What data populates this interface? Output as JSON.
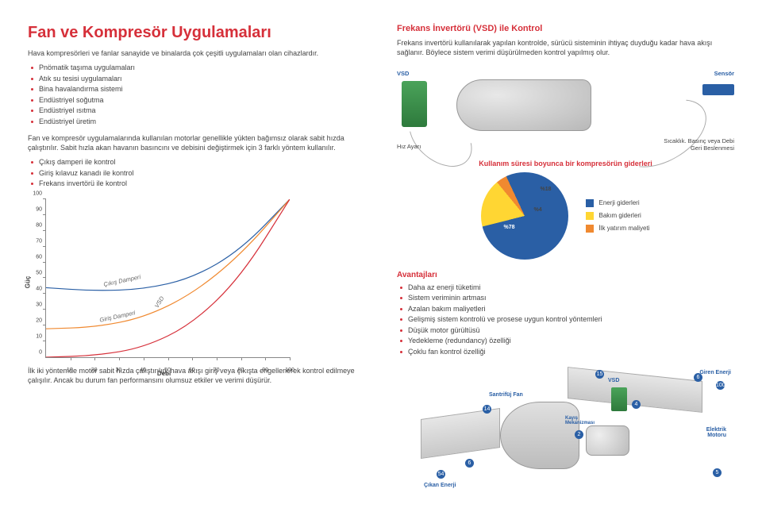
{
  "colors": {
    "brand_red": "#d6303a",
    "brand_blue": "#2a5fa5",
    "text": "#444444",
    "yellow": "#ffd633",
    "orange": "#f08930",
    "piebg": "#ffffff",
    "vsd_green": "#4aa35a",
    "grey": "#c8c8c8"
  },
  "left": {
    "title": "Fan ve Kompresör Uygulamaları",
    "intro": "Hava kompresörleri ve fanlar sanayide ve binalarda çok çeşitli uygulamaları olan cihazlardır.",
    "apps": [
      "Pnömatik taşıma uygulamaları",
      "Atık su tesisi uygulamaları",
      "Bina havalandırma sistemi",
      "Endüstriyel soğutma",
      "Endüstriyel ısıtma",
      "Endüstriyel üretim"
    ],
    "para2": "Fan ve kompresör uygulamalarında kullanılan motorlar genellikle yükten bağımsız olarak sabit hızda çalıştırılır. Sabit hızla akan havanın basıncını ve debisini değiştirmek için 3 farklı yöntem kullanılır.",
    "methods": [
      "Çıkış damperi ile kontrol",
      "Giriş kılavuz kanadı ile kontrol",
      "Frekans invertörü ile kontrol"
    ],
    "chart": {
      "type": "line",
      "xlabel": "Debi",
      "ylabel": "Güç",
      "xlim": [
        0,
        100
      ],
      "ylim": [
        0,
        100
      ],
      "xtick_step": 10,
      "ytick_step": 10,
      "label_fontsize": 8,
      "curves": {
        "cikis_damperi": {
          "label": "Çıkış Damperi",
          "color": "#2a5fa5",
          "points": [
            [
              0,
              44
            ],
            [
              20,
              42
            ],
            [
              40,
              43
            ],
            [
              60,
              50
            ],
            [
              80,
              68
            ],
            [
              100,
              100
            ]
          ]
        },
        "giris_damperi": {
          "label": "Giriş Damperi",
          "color": "#f08930",
          "points": [
            [
              0,
              18
            ],
            [
              20,
              19
            ],
            [
              40,
              25
            ],
            [
              60,
              40
            ],
            [
              80,
              65
            ],
            [
              100,
              100
            ]
          ]
        },
        "vsd": {
          "label": "VSD",
          "color": "#d6303a",
          "points": [
            [
              0,
              0
            ],
            [
              20,
              1
            ],
            [
              40,
              6
            ],
            [
              60,
              21
            ],
            [
              80,
              51
            ],
            [
              100,
              100
            ]
          ]
        }
      }
    },
    "footnote": "İlk iki yöntemde motor sabit hızda çalıştırılıp, hava akışı giriş veya çıkışta engellenerek kontrol edilmeye çalışılır. Ancak bu durum fan performansını olumsuz etkiler ve verimi düşürür."
  },
  "right": {
    "heading": "Frekans İnvertörü (VSD) ile Kontrol",
    "para": "Frekans invertörü kullanılarak yapılan kontrolde, sürücü sisteminin ihtiyaç duyduğu kadar hava akışı sağlanır. Böylece sistem verimi düşürülmeden kontrol yapılmış olur.",
    "schematic": {
      "vsd_label": "VSD",
      "sensor_label": "Sensör",
      "speed_adjust": "Hız Ayarı",
      "feedback": "Sıcaklık. Basınç veya Debi\nGeri Beslenmesi"
    },
    "pie": {
      "title": "Kullanım süresi boyunca bir kompresörün giderleri",
      "slices": [
        {
          "label": "Enerji giderleri",
          "pct": 78,
          "color": "#2a5fa5"
        },
        {
          "label": "Bakım giderleri",
          "pct": 18,
          "color": "#ffd633"
        },
        {
          "label": "İlk yatırım maliyeti",
          "pct": 4,
          "color": "#f08930"
        }
      ],
      "labels_on_chart": [
        "%78",
        "%18",
        "%4"
      ]
    },
    "advantages_title": "Avantajları",
    "advantages": [
      "Daha az enerji tüketimi",
      "Sistem veriminin artması",
      "Azalan bakım maliyetleri",
      "Gelişmiş sistem kontrolü ve prosese uygun kontrol yöntemleri",
      "Düşük motor gürültüsü",
      "Yedekleme (redundancy) özelliği",
      "Çoklu fan kontrol özelliği"
    ],
    "diagram": {
      "labels": {
        "incoming": "Giren Enerji",
        "outgoing": "Çıkan Enerji",
        "fan": "Santrifüj Fan",
        "vsd": "VSD",
        "belt": "Kayış\nMekanizması",
        "motor": "Elektrik\nMotoru"
      },
      "energy_numbers": [
        "100",
        "54",
        "15",
        "14",
        "6",
        "6",
        "5",
        "4",
        "2"
      ]
    }
  }
}
